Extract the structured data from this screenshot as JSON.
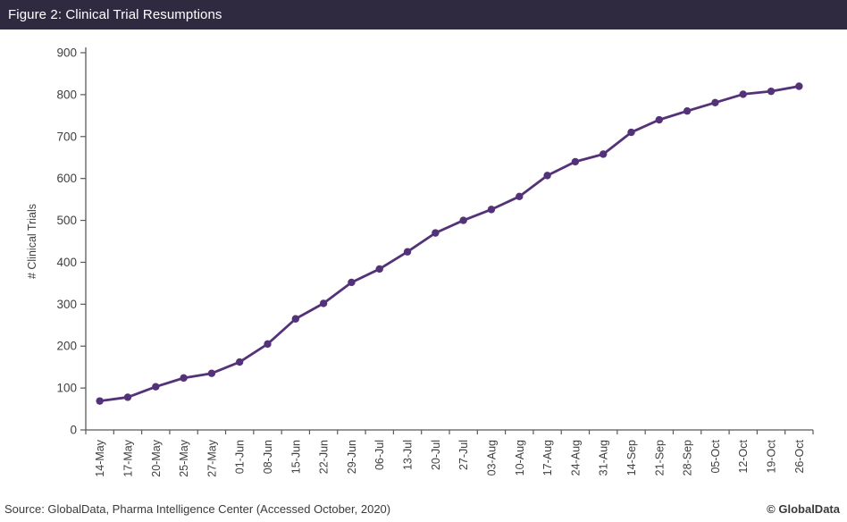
{
  "header": {
    "title": "Figure 2: Clinical Trial Resumptions"
  },
  "footer": {
    "source": "Source: GlobalData, Pharma Intelligence Center (Accessed October, 2020)",
    "copyright": "© GlobalData"
  },
  "colors": {
    "header_bg": "#2f2a40",
    "line": "#543279",
    "marker": "#543279",
    "axis": "#595959",
    "tick_text": "#404040",
    "footer_text": "#3a3a3a"
  },
  "chart_data": {
    "type": "line",
    "title": "Figure 2: Clinical Trial Resumptions",
    "xlabel": "",
    "ylabel": "# Clinical Trials",
    "ylim": [
      0,
      900
    ],
    "ytick_step": 100,
    "grid": false,
    "legend_position": "none",
    "marker": "circle",
    "categories": [
      "14-May",
      "17-May",
      "20-May",
      "25-May",
      "27-May",
      "01-Jun",
      "08-Jun",
      "15-Jun",
      "22-Jun",
      "29-Jun",
      "06-Jul",
      "13-Jul",
      "20-Jul",
      "27-Jul",
      "03-Aug",
      "10-Aug",
      "17-Aug",
      "24-Aug",
      "31-Aug",
      "14-Sep",
      "21-Sep",
      "28-Sep",
      "05-Oct",
      "12-Oct",
      "19-Oct",
      "26-Oct"
    ],
    "values": [
      69,
      78,
      103,
      124,
      135,
      162,
      205,
      265,
      302,
      352,
      384,
      425,
      470,
      500,
      526,
      557,
      607,
      640,
      658,
      710,
      740,
      761,
      781,
      801,
      808,
      820
    ]
  }
}
